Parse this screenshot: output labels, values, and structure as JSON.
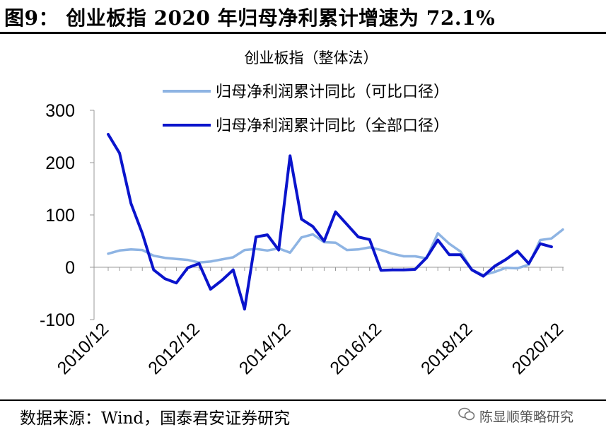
{
  "figure": {
    "title": "图9：  创业板指 2020 年归母净利累计增速为 72.1%",
    "source": "数据来源：Wind，国泰君安证券研究",
    "watermark": "陈显顺策略研究"
  },
  "chart_data": {
    "type": "line",
    "title": "创业板指（整体法）",
    "ylim": [
      -100,
      300
    ],
    "yticks": [
      -100,
      0,
      100,
      200,
      300
    ],
    "xticks": [
      "2010/12",
      "2012/12",
      "2014/12",
      "2016/12",
      "2018/12",
      "2020/12"
    ],
    "legend_position": "top",
    "grid": false,
    "x": [
      "2010/12",
      "2011/03",
      "2011/06",
      "2011/09",
      "2011/12",
      "2012/03",
      "2012/06",
      "2012/09",
      "2012/12",
      "2013/03",
      "2013/06",
      "2013/09",
      "2013/12",
      "2014/03",
      "2014/06",
      "2014/09",
      "2014/12",
      "2015/03",
      "2015/06",
      "2015/09",
      "2015/12",
      "2016/03",
      "2016/06",
      "2016/09",
      "2016/12",
      "2017/03",
      "2017/06",
      "2017/09",
      "2017/12",
      "2018/03",
      "2018/06",
      "2018/09",
      "2018/12",
      "2019/03",
      "2019/06",
      "2019/09",
      "2019/12",
      "2020/03",
      "2020/06",
      "2020/09",
      "2020/12"
    ],
    "series": [
      {
        "name": "归母净利润累计同比（可比口径）",
        "color": "#8EB4E3",
        "values": [
          26,
          32,
          34,
          33,
          22,
          18,
          16,
          14,
          9,
          11,
          15,
          19,
          33,
          35,
          32,
          36,
          28,
          57,
          63,
          48,
          47,
          33,
          34,
          38,
          33,
          26,
          21,
          21,
          17,
          65,
          45,
          30,
          -5,
          -15,
          -9,
          -1,
          -2,
          5,
          52,
          55,
          72.1
        ]
      },
      {
        "name": "归母净利润累计同比（全部口径）",
        "color": "#0A14CC",
        "values": [
          254,
          218,
          122,
          65,
          -5,
          -22,
          -30,
          -1,
          7,
          -42,
          -25,
          -5,
          -80,
          58,
          62,
          33,
          213,
          92,
          78,
          50,
          106,
          82,
          58,
          53,
          -6,
          -5,
          -5,
          -4,
          18,
          52,
          24,
          24,
          -5,
          -17,
          2,
          15,
          31,
          7,
          45,
          39,
          null
        ]
      }
    ]
  }
}
